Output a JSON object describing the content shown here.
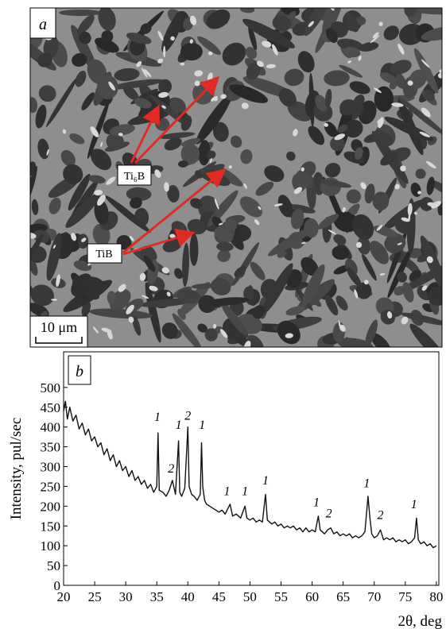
{
  "micrograph": {
    "panel_label": "a",
    "labels": [
      "Ti₆B",
      "TiB"
    ],
    "scale_bar": "10 μm"
  },
  "chart_data": {
    "type": "line",
    "panel_label": "b",
    "ylabel": "Intensity, pul/sec",
    "xlabel": "2θ, deg",
    "color": "#111111",
    "xlim": [
      20,
      80.4
    ],
    "ylim": [
      0,
      590
    ],
    "xticks": [
      20,
      25,
      30,
      35,
      40,
      45,
      50,
      55,
      60,
      65,
      70,
      75,
      80
    ],
    "yticks": [
      0,
      50,
      100,
      150,
      200,
      250,
      300,
      350,
      400,
      450,
      500
    ],
    "x": [
      20,
      20.3,
      20.6,
      21,
      21.5,
      22,
      22.5,
      23,
      23.5,
      24,
      24.5,
      25,
      25.5,
      26,
      26.5,
      27,
      27.5,
      28,
      28.5,
      29,
      29.5,
      30,
      30.5,
      31,
      31.5,
      32,
      32.5,
      33,
      33.5,
      34,
      34.5,
      35,
      35.2,
      35.4,
      36,
      36.5,
      37,
      37.5,
      38,
      38.5,
      38.7,
      39,
      39.5,
      40,
      40.2,
      40.6,
      41,
      41.5,
      42,
      42.2,
      42.4,
      42.7,
      43,
      43.5,
      44,
      44.5,
      45,
      45.5,
      46,
      46.8,
      47.2,
      47.8,
      48.5,
      49.2,
      49.5,
      50,
      50.5,
      51,
      51.5,
      52,
      52.5,
      52.8,
      53.5,
      54,
      54.5,
      55,
      55.5,
      56,
      56.5,
      57,
      57.5,
      58,
      58.5,
      59,
      59.5,
      60,
      60.5,
      61,
      61.3,
      62,
      62.5,
      63,
      63.5,
      64,
      64.5,
      65,
      65.5,
      66,
      66.5,
      67,
      67.5,
      68,
      68.5,
      69,
      69.3,
      69.6,
      70,
      70.5,
      71,
      71.5,
      72,
      72.5,
      73,
      73.5,
      74,
      74.5,
      75,
      75.5,
      76,
      76.5,
      76.8,
      77.1,
      77.5,
      78,
      78.5,
      79,
      79.5,
      80
    ],
    "values": [
      440,
      465,
      420,
      450,
      415,
      430,
      395,
      410,
      380,
      395,
      365,
      375,
      350,
      360,
      330,
      345,
      315,
      330,
      300,
      315,
      290,
      300,
      275,
      290,
      265,
      275,
      255,
      265,
      245,
      255,
      235,
      250,
      385,
      240,
      235,
      225,
      240,
      265,
      230,
      365,
      235,
      225,
      245,
      400,
      250,
      230,
      225,
      215,
      230,
      360,
      250,
      215,
      205,
      200,
      195,
      190,
      185,
      190,
      180,
      205,
      175,
      180,
      170,
      200,
      170,
      165,
      170,
      160,
      165,
      160,
      230,
      165,
      155,
      160,
      150,
      155,
      145,
      150,
      145,
      150,
      140,
      145,
      135,
      145,
      135,
      140,
      135,
      175,
      140,
      130,
      140,
      145,
      130,
      135,
      125,
      130,
      125,
      130,
      120,
      125,
      120,
      125,
      135,
      225,
      170,
      130,
      120,
      125,
      140,
      115,
      120,
      115,
      120,
      110,
      115,
      110,
      115,
      105,
      110,
      120,
      170,
      115,
      105,
      110,
      100,
      105,
      95,
      100
    ],
    "annotations": [
      {
        "text": "1",
        "x": 35.1,
        "y": 415
      },
      {
        "text": "2",
        "x": 37.3,
        "y": 285
      },
      {
        "text": "1",
        "x": 38.5,
        "y": 395
      },
      {
        "text": "2",
        "x": 40.0,
        "y": 418
      },
      {
        "text": "1",
        "x": 42.3,
        "y": 395
      },
      {
        "text": "1",
        "x": 46.3,
        "y": 228
      },
      {
        "text": "1",
        "x": 49.2,
        "y": 228
      },
      {
        "text": "1",
        "x": 52.5,
        "y": 255
      },
      {
        "text": "1",
        "x": 60.7,
        "y": 200
      },
      {
        "text": "2",
        "x": 62.7,
        "y": 172
      },
      {
        "text": "1",
        "x": 68.8,
        "y": 248
      },
      {
        "text": "2",
        "x": 71.0,
        "y": 168
      },
      {
        "text": "1",
        "x": 76.4,
        "y": 195
      }
    ]
  }
}
